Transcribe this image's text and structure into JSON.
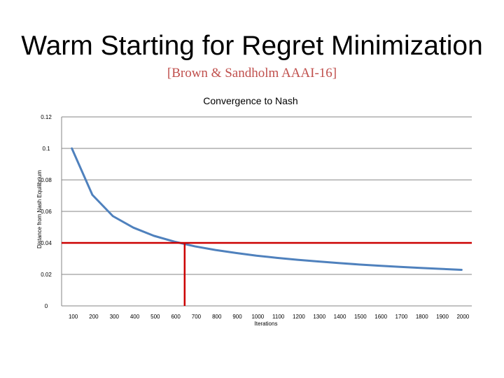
{
  "slide": {
    "title": "Warm Starting for Regret Minimization",
    "subtitle": "[Brown & Sandholm AAAI-16]"
  },
  "colors": {
    "series": "#4f81bd",
    "threshold": "#cc0000",
    "subtitle": "#c0504d",
    "gridline": "#868686"
  },
  "chart_data": {
    "type": "line",
    "title": "Convergence to Nash",
    "xlabel": "Iterations",
    "ylabel": "Distance from Nash Equilibrium",
    "categories": [
      "100",
      "200",
      "300",
      "400",
      "500",
      "600",
      "700",
      "800",
      "900",
      "1000",
      "1100",
      "1200",
      "1300",
      "1400",
      "1500",
      "1600",
      "1700",
      "1800",
      "1900",
      "2000"
    ],
    "yticks": [
      "0",
      "0.02",
      "0.04",
      "0.06",
      "0.08",
      "0.1",
      "0.12"
    ],
    "ylim": [
      0,
      0.12
    ],
    "grid": true,
    "series": [
      {
        "values": [
          0.1,
          0.0705,
          0.057,
          0.0497,
          0.0445,
          0.0408,
          0.0378,
          0.0355,
          0.0336,
          0.0319,
          0.0305,
          0.0293,
          0.0282,
          0.0272,
          0.0263,
          0.0255,
          0.0248,
          0.0241,
          0.0235,
          0.0229
        ]
      }
    ],
    "annotations": [
      {
        "type": "horizontal-line",
        "y": 0.04
      },
      {
        "type": "vertical-line",
        "x": 650,
        "y_top": 0.04
      }
    ]
  }
}
